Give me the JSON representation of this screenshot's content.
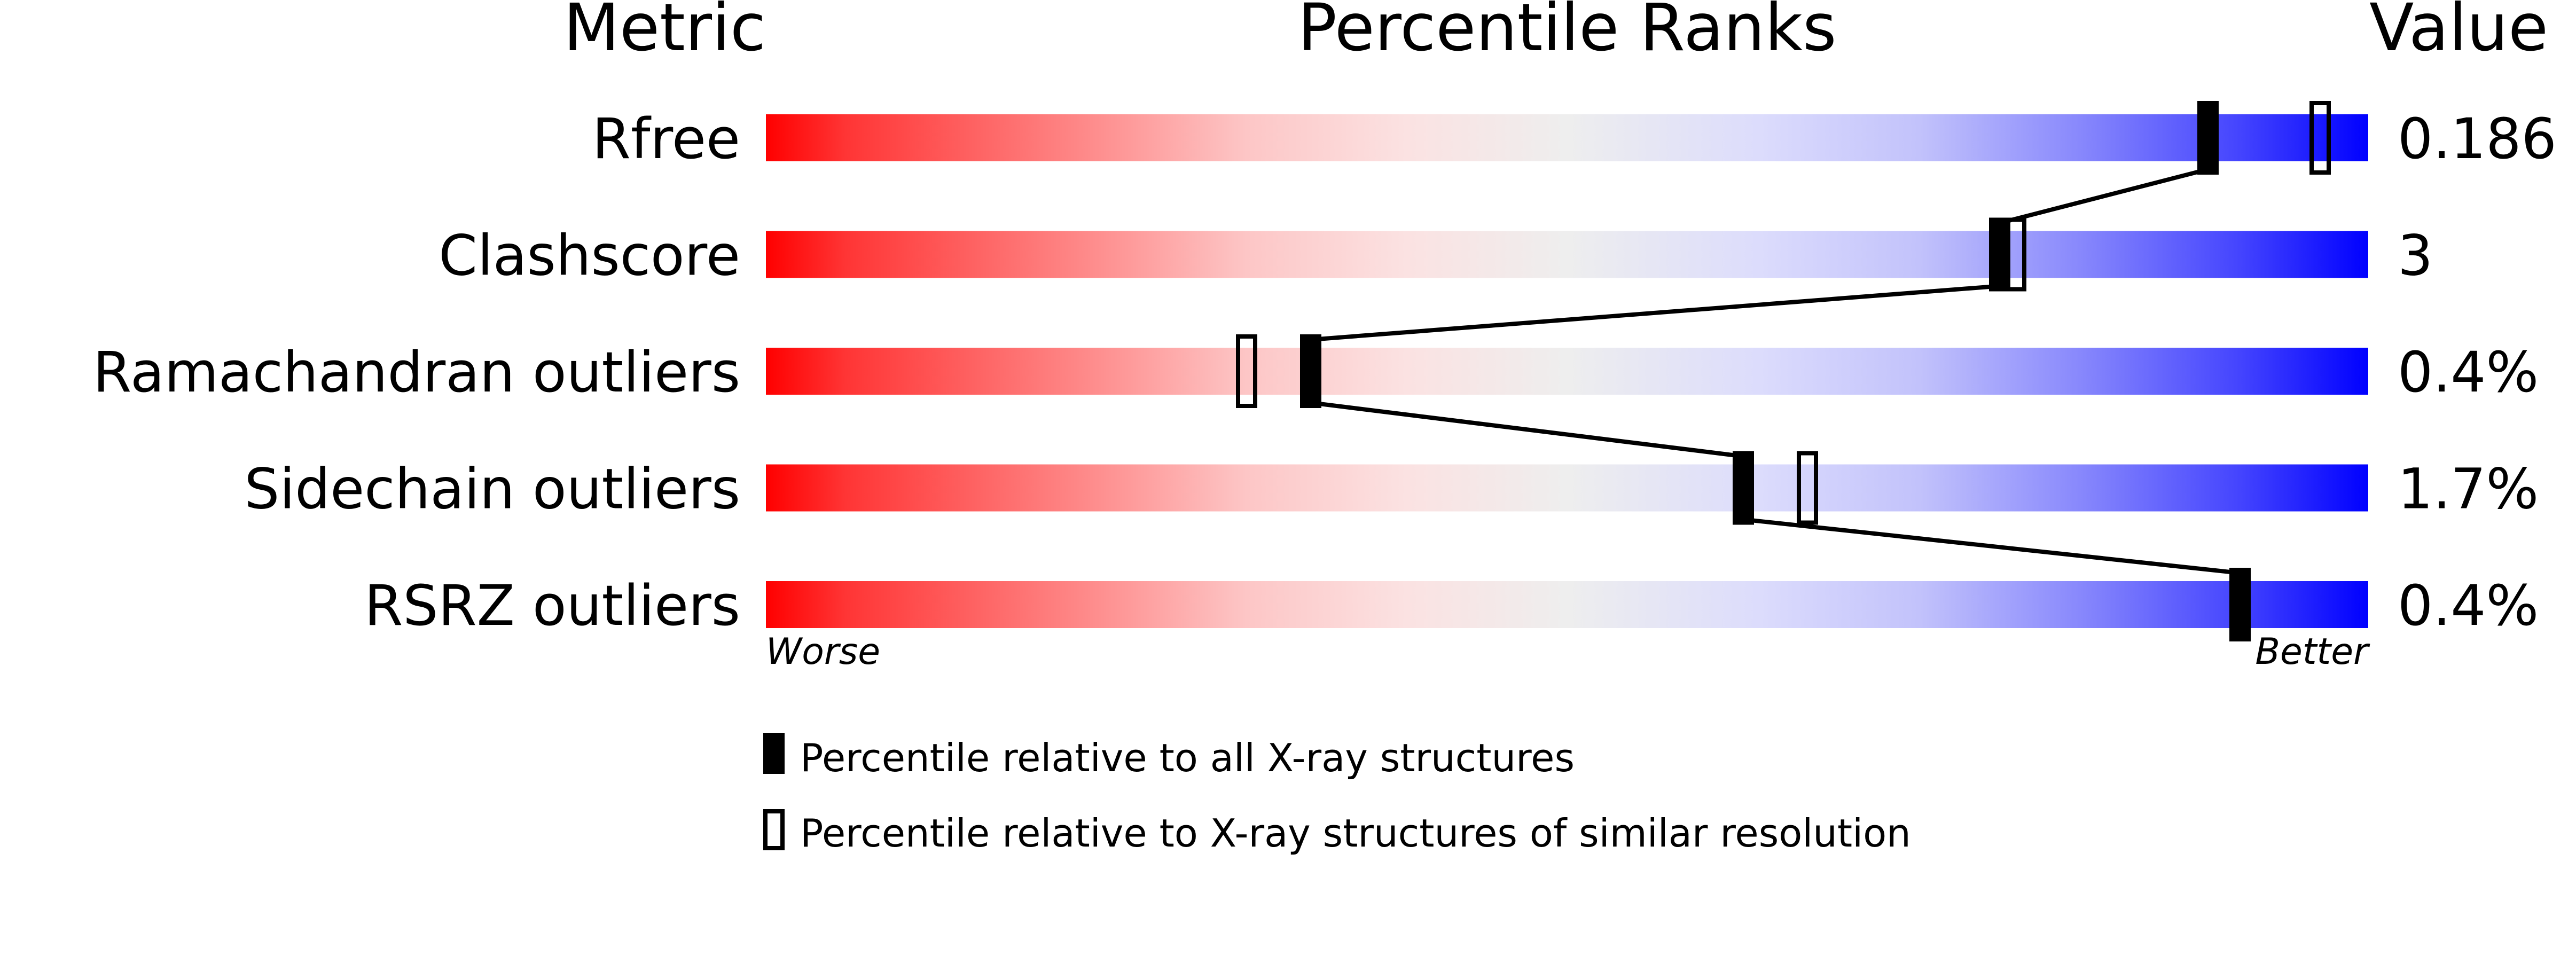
{
  "chart_data": {
    "type": "percentile-slider",
    "headers": {
      "metric": "Metric",
      "ranks": "Percentile Ranks",
      "value": "Value"
    },
    "xlim": [
      0,
      100
    ],
    "axis_labels": {
      "left": "Worse",
      "right": "Better"
    },
    "colors": {
      "worse": "#ff0000",
      "middle": "#eeeeee",
      "better": "#0000ff",
      "marker": "#000000"
    },
    "metrics": [
      {
        "name": "Rfree",
        "value": "0.186",
        "percentile_all": 90,
        "percentile_similar": 97
      },
      {
        "name": "Clashscore",
        "value": "3",
        "percentile_all": 77,
        "percentile_similar": 78
      },
      {
        "name": "Ramachandran outliers",
        "value": "0.4%",
        "percentile_all": 34,
        "percentile_similar": 30
      },
      {
        "name": "Sidechain outliers",
        "value": "1.7%",
        "percentile_all": 61,
        "percentile_similar": 65
      },
      {
        "name": "RSRZ outliers",
        "value": "0.4%",
        "percentile_all": 92,
        "percentile_similar": null
      }
    ],
    "legend": [
      {
        "marker": "filled",
        "label": "Percentile relative to all X-ray structures"
      },
      {
        "marker": "open",
        "label": "Percentile relative to X-ray structures of similar resolution"
      }
    ]
  }
}
